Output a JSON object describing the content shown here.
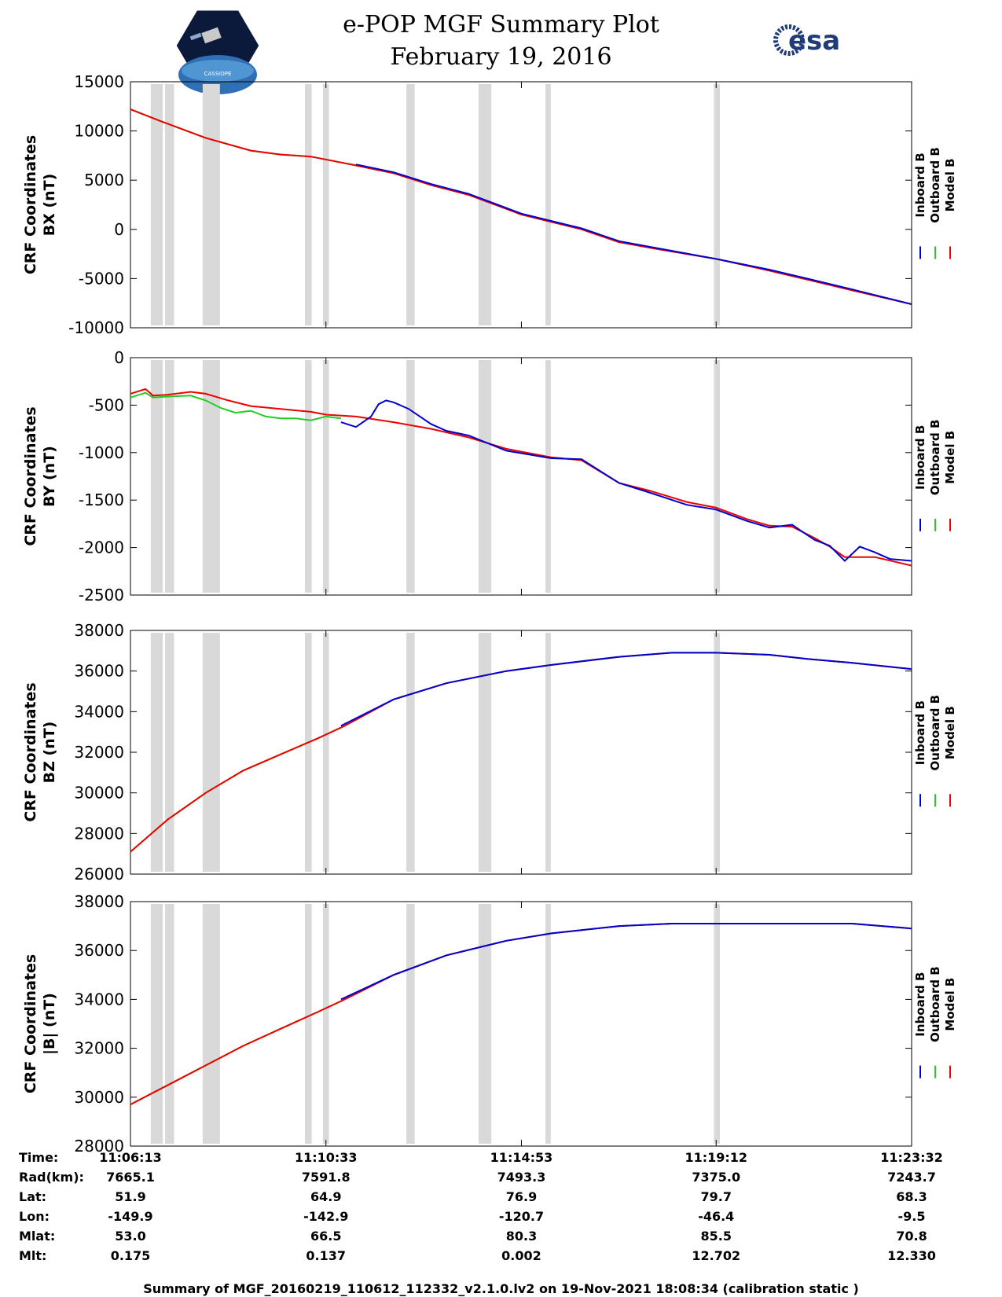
{
  "header": {
    "title": "e-POP MGF Summary Plot",
    "date": "February 19, 2016",
    "logo_left_text": "CASSIOPE",
    "logo_right_text": "esa"
  },
  "colors": {
    "inboard": "#0000cc",
    "outboard": "#22cc22",
    "model": "#ee0000",
    "gap": "#d9d9d9"
  },
  "chart_data": [
    {
      "type": "line",
      "ylabel": [
        "CRF Coordinates",
        "BX (nT)"
      ],
      "ylim": [
        -10000,
        15000
      ],
      "yticks": [
        15000,
        10000,
        5000,
        0,
        -5000,
        -10000
      ],
      "xlim": [
        0,
        1039
      ],
      "xticks": [
        0,
        260,
        520,
        779,
        1039
      ],
      "series": [
        {
          "name": "Inboard B",
          "x": [
            300,
            350,
            400,
            450,
            520,
            600,
            650,
            700,
            779,
            850,
            900,
            960,
            1039
          ],
          "y": [
            6600,
            5800,
            4600,
            3600,
            1600,
            100,
            -1200,
            -1900,
            -3000,
            -4100,
            -5000,
            -6100,
            -7600
          ]
        },
        {
          "name": "Outboard B",
          "x": [
            0,
            40,
            100,
            160,
            200,
            240,
            280,
            310
          ],
          "y": [
            12200,
            11000,
            9300,
            8000,
            7600,
            7400,
            6800,
            6400
          ]
        },
        {
          "name": "Model B",
          "x": [
            0,
            40,
            100,
            160,
            200,
            240,
            280,
            350,
            400,
            450,
            520,
            600,
            650,
            700,
            779,
            850,
            900,
            960,
            1039
          ],
          "y": [
            12200,
            11000,
            9300,
            8000,
            7600,
            7400,
            6800,
            5700,
            4500,
            3500,
            1500,
            0,
            -1300,
            -2000,
            -3000,
            -4200,
            -5100,
            -6200,
            -7600
          ]
        }
      ]
    },
    {
      "type": "line",
      "ylabel": [
        "CRF Coordinates",
        "BY (nT)"
      ],
      "ylim": [
        -2500,
        0
      ],
      "yticks": [
        0,
        -500,
        -1000,
        -1500,
        -2000,
        -2500
      ],
      "xlim": [
        0,
        1039
      ],
      "xticks": [
        0,
        260,
        520,
        779,
        1039
      ],
      "series": [
        {
          "name": "Inboard B",
          "x": [
            280,
            300,
            320,
            330,
            340,
            350,
            370,
            400,
            420,
            450,
            500,
            560,
            600,
            650,
            690,
            740,
            779,
            820,
            850,
            880,
            910,
            930,
            950,
            970,
            990,
            1010,
            1039
          ],
          "y": [
            -680,
            -730,
            -620,
            -490,
            -450,
            -470,
            -540,
            -700,
            -770,
            -820,
            -980,
            -1060,
            -1070,
            -1320,
            -1420,
            -1550,
            -1600,
            -1720,
            -1790,
            -1760,
            -1920,
            -1980,
            -2140,
            -1990,
            -2050,
            -2120,
            -2140
          ]
        },
        {
          "name": "Outboard B",
          "x": [
            0,
            20,
            30,
            50,
            80,
            100,
            120,
            140,
            160,
            180,
            200,
            220,
            240,
            260,
            280
          ],
          "y": [
            -420,
            -370,
            -420,
            -410,
            -400,
            -450,
            -530,
            -580,
            -560,
            -620,
            -640,
            -640,
            -660,
            -620,
            -640
          ]
        },
        {
          "name": "Model B",
          "x": [
            0,
            20,
            30,
            50,
            80,
            100,
            130,
            160,
            200,
            240,
            260,
            300,
            350,
            400,
            450,
            500,
            560,
            600,
            650,
            690,
            740,
            779,
            820,
            850,
            880,
            910,
            930,
            950,
            990,
            1039
          ],
          "y": [
            -380,
            -330,
            -400,
            -390,
            -360,
            -380,
            -450,
            -510,
            -540,
            -570,
            -600,
            -620,
            -680,
            -750,
            -840,
            -960,
            -1050,
            -1080,
            -1320,
            -1400,
            -1520,
            -1580,
            -1700,
            -1770,
            -1780,
            -1900,
            -1990,
            -2100,
            -2100,
            -2190
          ]
        }
      ]
    },
    {
      "type": "line",
      "ylabel": [
        "CRF Coordinates",
        "BZ (nT)"
      ],
      "ylim": [
        26000,
        38000
      ],
      "yticks": [
        38000,
        36000,
        34000,
        32000,
        30000,
        28000,
        26000
      ],
      "xlim": [
        0,
        1039
      ],
      "xticks": [
        0,
        260,
        520,
        779,
        1039
      ],
      "series": [
        {
          "name": "Inboard B",
          "x": [
            280,
            350,
            420,
            500,
            560,
            650,
            720,
            779,
            850,
            900,
            960,
            1039
          ],
          "y": [
            33300,
            34600,
            35400,
            36000,
            36300,
            36700,
            36900,
            36900,
            36800,
            36600,
            36400,
            36100
          ]
        },
        {
          "name": "Outboard B",
          "x": [
            0,
            50,
            100,
            150,
            200,
            250,
            285
          ],
          "y": [
            27100,
            28700,
            30000,
            31100,
            31900,
            32700,
            33300
          ]
        },
        {
          "name": "Model B",
          "x": [
            0,
            50,
            100,
            150,
            200,
            250,
            285,
            350,
            420,
            500,
            560,
            650,
            720,
            779,
            850,
            900,
            960,
            1039
          ],
          "y": [
            27100,
            28700,
            30000,
            31100,
            31900,
            32700,
            33300,
            34600,
            35400,
            36000,
            36300,
            36700,
            36900,
            36900,
            36800,
            36600,
            36400,
            36100
          ]
        }
      ]
    },
    {
      "type": "line",
      "ylabel": [
        "CRF Coordinates",
        "|B| (nT)"
      ],
      "ylim": [
        28000,
        38000
      ],
      "yticks": [
        38000,
        36000,
        34000,
        32000,
        30000,
        28000
      ],
      "xlim": [
        0,
        1039
      ],
      "xticks": [
        0,
        260,
        520,
        779,
        1039
      ],
      "series": [
        {
          "name": "Inboard B",
          "x": [
            280,
            350,
            420,
            500,
            560,
            650,
            720,
            779,
            850,
            900,
            960,
            1039
          ],
          "y": [
            34000,
            35000,
            35800,
            36400,
            36700,
            37000,
            37100,
            37100,
            37100,
            37100,
            37100,
            36900
          ]
        },
        {
          "name": "Outboard B",
          "x": [
            0,
            50,
            100,
            150,
            200,
            250,
            285
          ],
          "y": [
            29700,
            30500,
            31300,
            32100,
            32800,
            33500,
            34000
          ]
        },
        {
          "name": "Model B",
          "x": [
            0,
            50,
            100,
            150,
            200,
            250,
            285,
            350,
            420,
            500,
            560,
            650,
            720,
            779,
            850,
            900,
            960,
            1039
          ],
          "y": [
            29700,
            30500,
            31300,
            32100,
            32800,
            33500,
            34000,
            35000,
            35800,
            36400,
            36700,
            37000,
            37100,
            37100,
            37100,
            37100,
            37100,
            36900
          ]
        }
      ]
    }
  ],
  "legend": [
    "Inboard B",
    "Outboard B",
    "Model B"
  ],
  "gaps": [
    [
      27,
      43
    ],
    [
      46,
      58
    ],
    [
      96,
      119
    ],
    [
      232,
      241
    ],
    [
      256,
      264
    ],
    [
      367,
      378
    ],
    [
      463,
      480
    ],
    [
      552,
      559
    ],
    [
      776,
      784
    ]
  ],
  "info_table": {
    "row_labels": [
      "Time:",
      "Rad(km):",
      "Lat:",
      "Lon:",
      "Mlat:",
      "Mlt:"
    ],
    "columns": [
      [
        "11:06:13",
        "7665.1",
        "51.9",
        "-149.9",
        "53.0",
        "0.175"
      ],
      [
        "11:10:33",
        "7591.8",
        "64.9",
        "-142.9",
        "66.5",
        "0.137"
      ],
      [
        "11:14:53",
        "7493.3",
        "76.9",
        "-120.7",
        "80.3",
        "0.002"
      ],
      [
        "11:19:12",
        "7375.0",
        "79.7",
        "-46.4",
        "85.5",
        "12.702"
      ],
      [
        "11:23:32",
        "7243.7",
        "68.3",
        "-9.5",
        "70.8",
        "12.330"
      ]
    ]
  },
  "footer": "Summary of MGF_20160219_110612_112332_v2.1.0.lv2 on 19-Nov-2021 18:08:34 (calibration static )"
}
